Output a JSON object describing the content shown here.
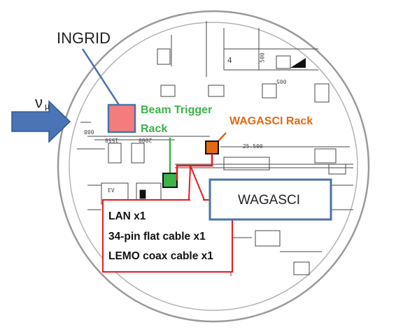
{
  "labels": {
    "ingrid": "INGRID",
    "nu_symbol": "ν",
    "nu_subscript": "μ",
    "beam_trigger_line1": "Beam Trigger",
    "beam_trigger_line2": "Rack",
    "wagasci_rack": "WAGASCI Rack",
    "wagasci": "WAGASCI"
  },
  "cables": [
    "LAN x1",
    "34-pin flat cable x1",
    "LEMO coax cable x1"
  ],
  "floorplan_marks": {
    "depth": "-25.500",
    "dim_a": "1550",
    "dim_b": "2000",
    "dim_c": "088",
    "dim_d": "4",
    "dim_e": "500",
    "dim_f": "005",
    "ev": "EV"
  },
  "colors": {
    "ingrid_box": "#f47c7c",
    "beam_trigger": "#3bb34a",
    "wagasci_rack": "#e36a12",
    "wagasci_outline": "#4a73a8",
    "callout_border": "#e8191e",
    "beam_arrow": "#4a74b6"
  }
}
